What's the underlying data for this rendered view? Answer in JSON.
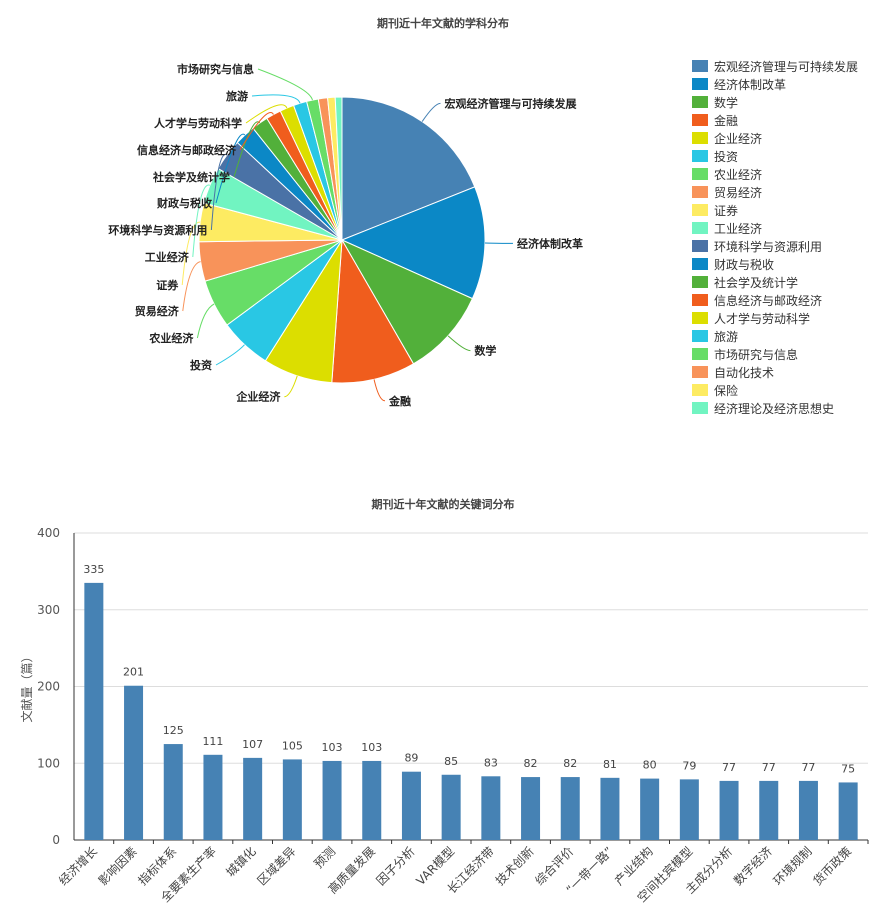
{
  "chart_data": [
    {
      "type": "pie",
      "title": "期刊近十年文献的学科分布",
      "legend_position": "right",
      "slices": [
        {
          "label": "宏观经济管理与可持续发展",
          "value": 20.0,
          "color": "#4682b4"
        },
        {
          "label": "经济体制改革",
          "value": 13.5,
          "color": "#0b88c6"
        },
        {
          "label": "数学",
          "value": 10.5,
          "color": "#52b03a"
        },
        {
          "label": "金融",
          "value": 10.0,
          "color": "#f05d1d"
        },
        {
          "label": "企业经济",
          "value": 8.3,
          "color": "#dcde00"
        },
        {
          "label": "投资",
          "value": 6.2,
          "color": "#29c7e4"
        },
        {
          "label": "农业经济",
          "value": 5.8,
          "color": "#67dd67"
        },
        {
          "label": "贸易经济",
          "value": 4.7,
          "color": "#f8935a"
        },
        {
          "label": "证券",
          "value": 4.6,
          "color": "#fdeb62"
        },
        {
          "label": "工业经济",
          "value": 4.4,
          "color": "#71f4c1"
        },
        {
          "label": "环境科学与资源利用",
          "value": 3.8,
          "color": "#4a72a6"
        },
        {
          "label": "财政与税收",
          "value": 2.5,
          "color": "#0b88c6"
        },
        {
          "label": "社会学及统计学",
          "value": 2.0,
          "color": "#52b03a"
        },
        {
          "label": "信息经济与邮政经济",
          "value": 1.8,
          "color": "#f05d1d"
        },
        {
          "label": "人才学与劳动科学",
          "value": 1.7,
          "color": "#dcde00"
        },
        {
          "label": "旅游",
          "value": 1.6,
          "color": "#29c7e4"
        },
        {
          "label": "市场研究与信息",
          "value": 1.4,
          "color": "#67dd67"
        },
        {
          "label": "自动化技术",
          "value": 1.1,
          "color": "#f8935a"
        },
        {
          "label": "保险",
          "value": 0.9,
          "color": "#fdeb62"
        },
        {
          "label": "经济理论及经济思想史",
          "value": 0.8,
          "color": "#71f4c1"
        }
      ]
    },
    {
      "type": "bar",
      "title": "期刊近十年文献的关键词分布",
      "ylabel": "文献量（篇）",
      "ylim": [
        0,
        400
      ],
      "yticks": [
        0,
        100,
        200,
        300,
        400
      ],
      "grid": true,
      "color": "#4682b4",
      "categories": [
        "经济增长",
        "影响因素",
        "指标体系",
        "全要素生产率",
        "城镇化",
        "区域差异",
        "预测",
        "高质量发展",
        "因子分析",
        "VAR模型",
        "长江经济带",
        "技术创新",
        "综合评价",
        "“一带一路”",
        "产业结构",
        "空间杜宾模型",
        "主成分分析",
        "数字经济",
        "环境规制",
        "货币政策"
      ],
      "values": [
        335,
        201,
        125,
        111,
        107,
        105,
        103,
        103,
        89,
        85,
        83,
        82,
        82,
        81,
        80,
        79,
        77,
        77,
        77,
        75
      ]
    }
  ]
}
